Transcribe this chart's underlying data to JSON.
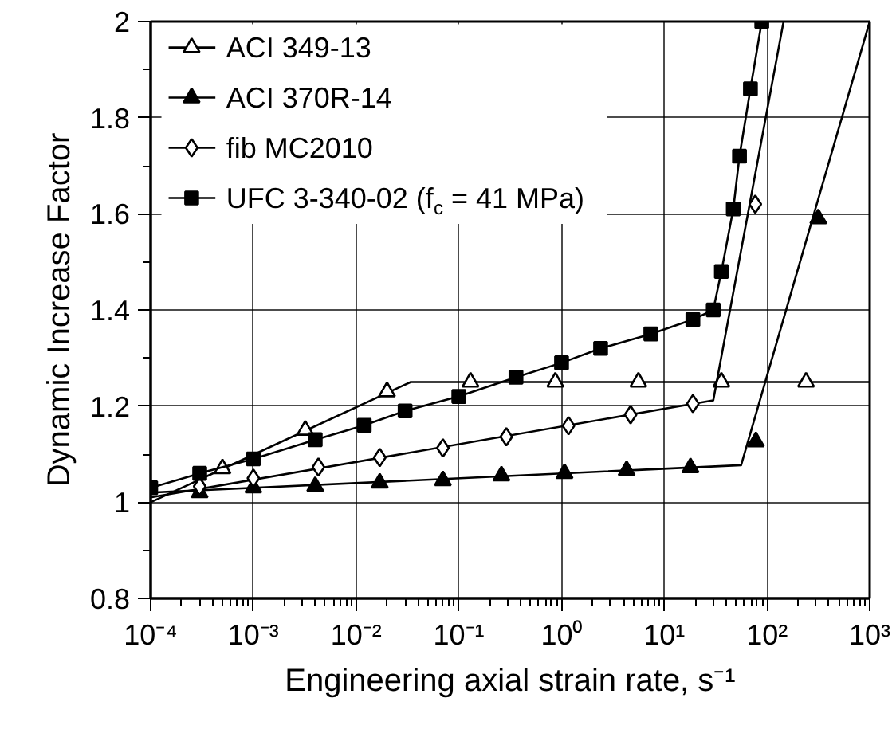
{
  "chart_data": {
    "type": "scatter",
    "xlabel": "Engineering axial strain rate, s⁻¹",
    "ylabel": "Dynamic Increase Factor",
    "log": "x",
    "grid": true,
    "legend": "top left",
    "xlim": [
      0.0001,
      1000
    ],
    "ylim": [
      0.8,
      2
    ],
    "xticks": [
      {
        "value": 0.0001,
        "label": "10⁻⁴"
      },
      {
        "value": 0.001,
        "label": "10⁻³"
      },
      {
        "value": 0.01,
        "label": "10⁻²"
      },
      {
        "value": 0.1,
        "label": "10⁻¹"
      },
      {
        "value": 1,
        "label": "10⁰"
      },
      {
        "value": 10,
        "label": "10¹"
      },
      {
        "value": 100,
        "label": "10²"
      },
      {
        "value": 1000,
        "label": "10³"
      }
    ],
    "yticks": [
      0.8,
      1,
      1.2,
      1.4,
      1.6,
      1.8,
      2
    ],
    "series": [
      {
        "type": "line",
        "color": "#000000",
        "x": [
          0.0001,
          0.034,
          1000
        ],
        "values": [
          1.0,
          1.25,
          1.25
        ]
      },
      {
        "name": "ACI 349-13",
        "color": "#000000",
        "marker": "triangle_open",
        "x": [
          0.0005,
          0.0032,
          0.02,
          0.13,
          0.87,
          5.6,
          36,
          240
        ],
        "values": [
          1.07,
          1.15,
          1.23,
          1.25,
          1.25,
          1.25,
          1.25,
          1.25
        ]
      },
      {
        "type": "line",
        "color": "#000000",
        "x": [
          0.0001,
          56,
          1000
        ],
        "values": [
          1.02,
          1.077,
          2.0
        ]
      },
      {
        "name": "ACI 370R-14",
        "color": "#000000",
        "marker": "triangle",
        "x": [
          0.0003,
          0.001,
          0.004,
          0.017,
          0.07,
          0.26,
          1.07,
          4.3,
          18,
          78,
          316
        ],
        "values": [
          1.02,
          1.03,
          1.033,
          1.04,
          1.045,
          1.055,
          1.06,
          1.066,
          1.072,
          1.126,
          1.59
        ]
      },
      {
        "type": "line",
        "color": "#000000",
        "x": [
          0.0001,
          30,
          145
        ],
        "values": [
          1.01,
          1.212,
          2.0
        ]
      },
      {
        "name": "fib MC2010",
        "color": "#000000",
        "marker": "diamond_open",
        "x": [
          0.0003,
          0.001,
          0.0043,
          0.017,
          0.07,
          0.29,
          1.17,
          4.7,
          19,
          77
        ],
        "values": [
          1.033,
          1.05,
          1.073,
          1.093,
          1.113,
          1.136,
          1.159,
          1.182,
          1.205,
          1.62
        ]
      },
      {
        "type": "line",
        "color": "#000000",
        "x": [
          0.0001,
          0.0003,
          0.001,
          0.004,
          0.012,
          0.03,
          0.1,
          0.36,
          1,
          2.4,
          7.4,
          19,
          30,
          36,
          47,
          54,
          69,
          89
        ],
        "values": [
          1.03,
          1.06,
          1.09,
          1.13,
          1.16,
          1.19,
          1.22,
          1.26,
          1.29,
          1.32,
          1.35,
          1.38,
          1.4,
          1.48,
          1.61,
          1.72,
          1.86,
          2.0
        ]
      },
      {
        "name": "UFC 3-340-02 (f$_{c}$ = 41 MPa)",
        "color": "#000000",
        "marker": "square",
        "x": [
          0.0001,
          0.0003,
          0.001,
          0.004,
          0.012,
          0.03,
          0.1,
          0.36,
          1,
          2.4,
          7.4,
          19,
          30,
          36,
          47,
          54,
          69,
          89
        ],
        "values": [
          1.03,
          1.06,
          1.09,
          1.13,
          1.16,
          1.19,
          1.22,
          1.26,
          1.29,
          1.32,
          1.35,
          1.38,
          1.4,
          1.48,
          1.61,
          1.72,
          1.86,
          2.0
        ]
      }
    ]
  }
}
